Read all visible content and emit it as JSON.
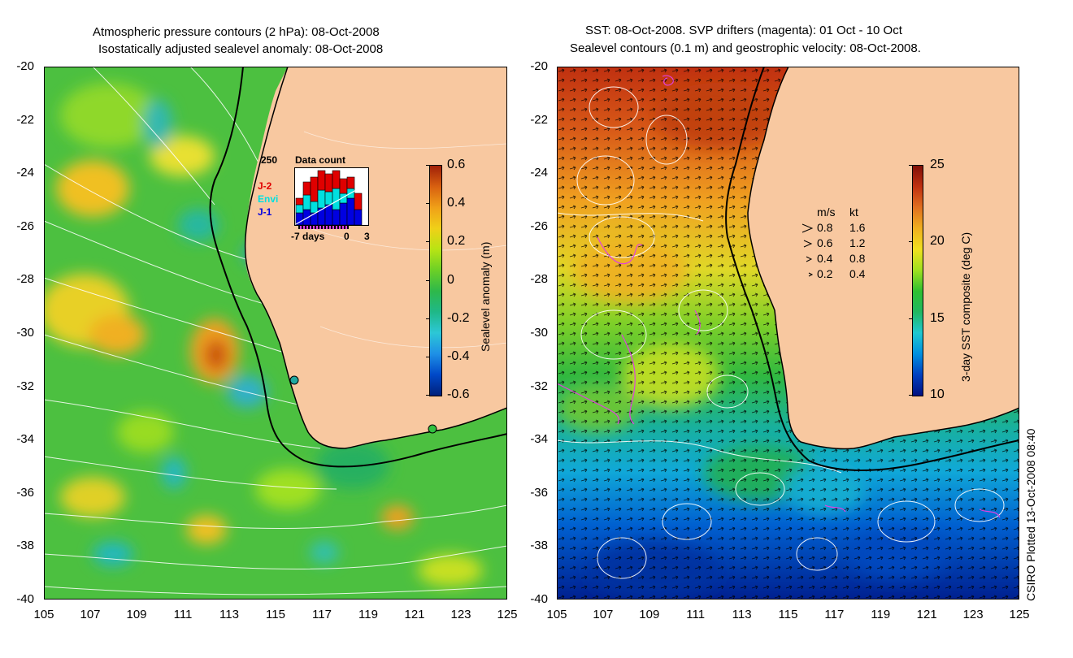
{
  "left_panel": {
    "title_line1": "Atmospheric pressure contours (2 hPa): 08-Oct-2008",
    "title_line2": "Isostatically adjusted sealevel anomaly: 08-Oct-2008",
    "colorbar": {
      "label": "Sealevel anomaly (m)",
      "ticks": [
        "0.6",
        "0.4",
        "0.2",
        "0",
        "-0.2",
        "-0.4",
        "-0.6"
      ],
      "min": -0.6,
      "max": 0.6,
      "colors": [
        "#00207a",
        "#0048c8",
        "#1e90e6",
        "#2cc7d6",
        "#1fb888",
        "#2eb84a",
        "#6cd026",
        "#b8e414",
        "#f0d018",
        "#f0a018",
        "#d86010",
        "#a02008"
      ]
    },
    "inset": {
      "title": "Data count",
      "ymax_label": "250",
      "legend": [
        "J-2",
        "Envi",
        "J-1"
      ],
      "legend_colors": [
        "#e00000",
        "#00e0e0",
        "#0000e0"
      ],
      "xlabel": "-7 days",
      "x_zero": "0",
      "x_end": "3"
    },
    "stations": [
      "station-marker-1",
      "station-marker-2"
    ]
  },
  "right_panel": {
    "title_line1": "SST: 08-Oct-2008. SVP drifters (magenta): 01 Oct - 10 Oct",
    "title_line2": "Sealevel contours (0.1 m) and geostrophic velocity: 08-Oct-2008.",
    "colorbar": {
      "label": "3-day SST composite (deg C)",
      "ticks": [
        "25",
        "20",
        "15",
        "10"
      ],
      "min": 10,
      "max": 25,
      "colors": [
        "#001080",
        "#0040c0",
        "#0090e0",
        "#20c8d0",
        "#20b860",
        "#30c030",
        "#a0e020",
        "#f0e020",
        "#f0b020",
        "#e07020",
        "#c03010",
        "#801008"
      ]
    },
    "velocity_legend": {
      "header_ms": "m/s",
      "header_kt": "kt",
      "rows": [
        {
          "ms": "0.8",
          "kt": "1.6"
        },
        {
          "ms": "0.6",
          "kt": "1.2"
        },
        {
          "ms": "0.4",
          "kt": "0.8"
        },
        {
          "ms": "0.2",
          "kt": "0.4"
        }
      ]
    }
  },
  "axes": {
    "y_ticks": [
      "-20",
      "-22",
      "-24",
      "-26",
      "-28",
      "-30",
      "-32",
      "-34",
      "-36",
      "-38",
      "-40"
    ],
    "x_ticks": [
      "105",
      "107",
      "109",
      "111",
      "113",
      "115",
      "117",
      "119",
      "121",
      "123",
      "125"
    ],
    "lat_range": [
      -40,
      -20
    ],
    "lon_range": [
      105,
      125
    ]
  },
  "credit": "CSIRO Plotted 13-Oct-2008 08:40",
  "colors": {
    "land": "#f8c8a0",
    "coast": "#000000",
    "contour": "#ffffff",
    "drifter": "#e040e0"
  }
}
